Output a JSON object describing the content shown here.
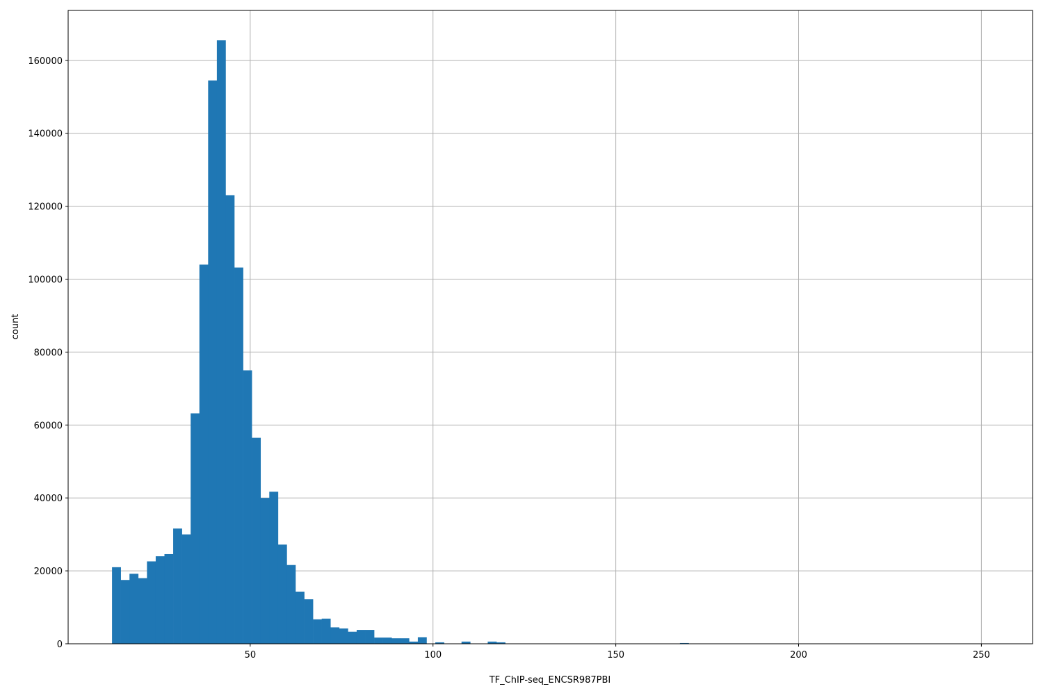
{
  "chart_data": {
    "type": "bar",
    "title": "",
    "xlabel": "TF_ChIP-seq_ENCSR987PBI",
    "ylabel": "count",
    "bin_range": [
      12.2,
      251.2
    ],
    "bins": 100,
    "values": [
      21000,
      17500,
      19200,
      18000,
      22600,
      24000,
      24600,
      31600,
      30000,
      63200,
      104000,
      154500,
      165500,
      123000,
      103200,
      75000,
      56500,
      40000,
      41700,
      27200,
      21600,
      14300,
      12200,
      6700,
      6900,
      4500,
      4200,
      3300,
      3800,
      3800,
      1700,
      1700,
      1500,
      1500,
      600,
      1800,
      0,
      400,
      0,
      0,
      600,
      0,
      0,
      600,
      400,
      0,
      0,
      0,
      0,
      0,
      0,
      0,
      0,
      0,
      0,
      0,
      0,
      0,
      0,
      0,
      0,
      0,
      0,
      0,
      0,
      200,
      0,
      0,
      0,
      0,
      0,
      0,
      0,
      0,
      0,
      0,
      0,
      0,
      0,
      0,
      0,
      0,
      0,
      0,
      0,
      0,
      0,
      0,
      0,
      0,
      0,
      0,
      0,
      0,
      0,
      0,
      0,
      0,
      0,
      0
    ],
    "xlim": [
      0.2,
      264
    ],
    "ylim": [
      0,
      173700
    ],
    "xticks": [
      50,
      100,
      150,
      200,
      250
    ],
    "yticks": [
      0,
      20000,
      40000,
      60000,
      80000,
      100000,
      120000,
      140000,
      160000
    ],
    "grid": true,
    "color": "#1f77b4"
  }
}
